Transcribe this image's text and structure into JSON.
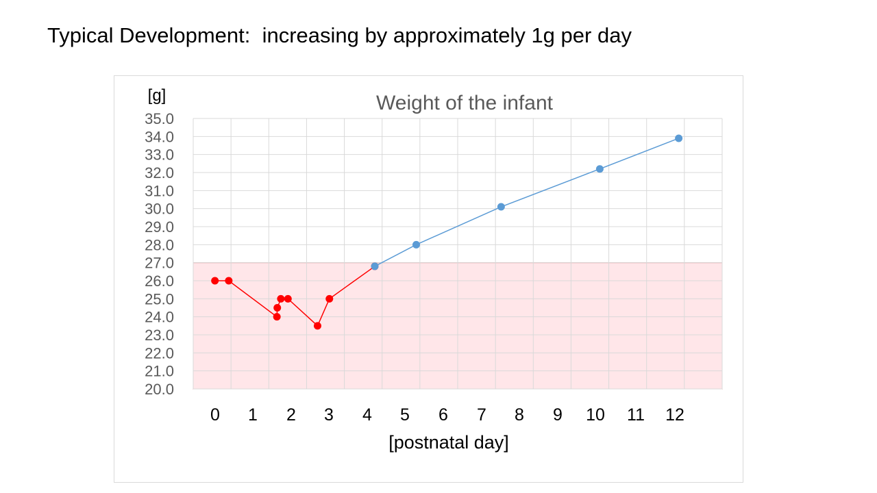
{
  "slide": {
    "heading": "Typical Development:  increasing by approximately 1g per day"
  },
  "chart_data": {
    "type": "line",
    "title": "Weight of the infant",
    "xlabel": "[postnatal day]",
    "ylabel": "[g]",
    "xlim": [
      -0.3,
      13.1
    ],
    "ylim": [
      20.0,
      35.0
    ],
    "y_ticks": [
      "20.0",
      "21.0",
      "22.0",
      "23.0",
      "24.0",
      "25.0",
      "26.0",
      "27.0",
      "28.0",
      "29.0",
      "30.0",
      "31.0",
      "32.0",
      "33.0",
      "34.0",
      "35.0"
    ],
    "x_ticks": [
      "0",
      "1",
      "2",
      "3",
      "4",
      "5",
      "6",
      "7",
      "8",
      "9",
      "10",
      "11",
      "12"
    ],
    "grid": true,
    "highlight_band": {
      "y_from": 20.0,
      "y_to": 27.0,
      "color": "#ffe6e9",
      "border": "#e06666"
    },
    "series": [
      {
        "color": "#ff0000",
        "points": [
          {
            "x": 0.25,
            "y": 26.0
          },
          {
            "x": 0.6,
            "y": 26.0
          },
          {
            "x": 1.82,
            "y": 24.0
          },
          {
            "x": 1.83,
            "y": 24.5
          },
          {
            "x": 1.92,
            "y": 25.0
          },
          {
            "x": 2.1,
            "y": 25.0
          },
          {
            "x": 2.85,
            "y": 23.5
          },
          {
            "x": 3.15,
            "y": 25.0
          },
          {
            "x": 4.3,
            "y": 26.8
          }
        ]
      },
      {
        "color": "#5b9bd5",
        "points": [
          {
            "x": 4.3,
            "y": 26.8
          },
          {
            "x": 5.35,
            "y": 28.0
          },
          {
            "x": 7.5,
            "y": 30.1
          },
          {
            "x": 10.0,
            "y": 32.2
          },
          {
            "x": 12.0,
            "y": 33.9
          }
        ]
      }
    ]
  }
}
